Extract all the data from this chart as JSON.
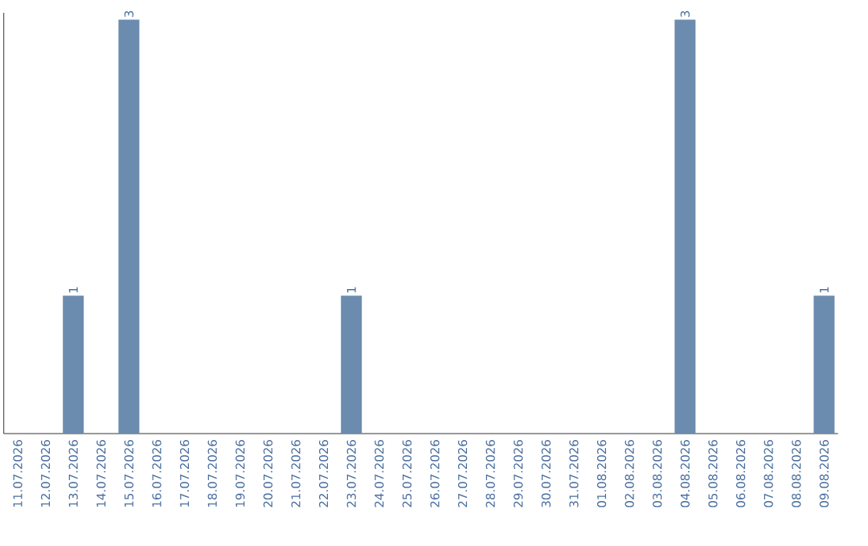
{
  "chart_data": {
    "type": "bar",
    "categories": [
      "11.07.2026",
      "12.07.2026",
      "13.07.2026",
      "14.07.2026",
      "15.07.2026",
      "16.07.2026",
      "17.07.2026",
      "18.07.2026",
      "19.07.2026",
      "20.07.2026",
      "21.07.2026",
      "22.07.2026",
      "23.07.2026",
      "24.07.2026",
      "25.07.2026",
      "26.07.2026",
      "27.07.2026",
      "28.07.2026",
      "29.07.2026",
      "30.07.2026",
      "31.07.2026",
      "01.08.2026",
      "02.08.2026",
      "03.08.2026",
      "04.08.2026",
      "05.08.2026",
      "06.08.2026",
      "07.08.2026",
      "08.08.2026",
      "09.08.2026"
    ],
    "values": [
      0,
      0,
      1,
      0,
      3,
      0,
      0,
      0,
      0,
      0,
      0,
      0,
      1,
      0,
      0,
      0,
      0,
      0,
      0,
      0,
      0,
      0,
      0,
      0,
      3,
      0,
      0,
      0,
      0,
      1
    ],
    "value_labels": [
      null,
      null,
      "1",
      null,
      "3",
      null,
      null,
      null,
      null,
      null,
      null,
      null,
      "1",
      null,
      null,
      null,
      null,
      null,
      null,
      null,
      null,
      null,
      null,
      null,
      "3",
      null,
      null,
      null,
      null,
      "1"
    ],
    "color": "#6b8cae",
    "ylim": [
      0,
      3.05
    ],
    "tick_labels": "x"
  }
}
